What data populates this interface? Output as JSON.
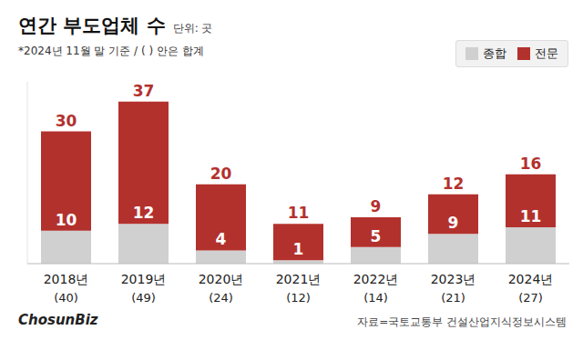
{
  "chart_data": {
    "type": "bar",
    "title": "연간 부도업체 수",
    "unit": "단위: 곳",
    "subtitle": "*2024년 11월 말 기준 / (   ) 안은 합계",
    "source": "자료=국토교통부 건설산업지식정보시스템",
    "logo": "ChosunBiz",
    "categories": [
      "2018년",
      "2019년",
      "2020년",
      "2021년",
      "2022년",
      "2023년",
      "2024년"
    ],
    "series": [
      {
        "name": "종합",
        "color": "#d0d0d0",
        "values": [
          10,
          12,
          4,
          1,
          5,
          9,
          11
        ]
      },
      {
        "name": "전문",
        "color": "#b3312d",
        "values": [
          30,
          37,
          20,
          11,
          9,
          12,
          16
        ]
      }
    ],
    "totals": {
      "values": [
        40,
        49,
        24,
        12,
        14,
        21,
        27
      ],
      "value_labels": [
        "(40)",
        "(49)",
        "(24)",
        "(12)",
        "(14)",
        "(21)",
        "(27)"
      ]
    },
    "stacked": true,
    "data_labels": true,
    "legend": "top-right",
    "tick_labels": false,
    "ylim": [
      0,
      55
    ]
  }
}
